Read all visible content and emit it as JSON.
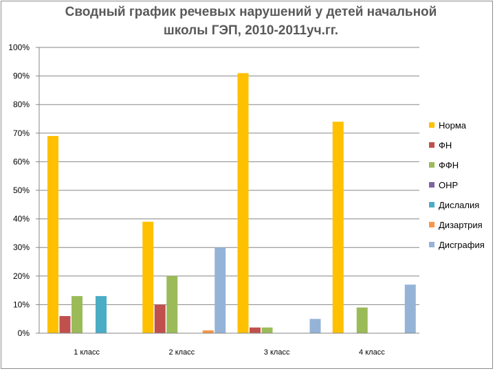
{
  "chart_data": {
    "type": "bar",
    "title_lines": [
      "Сводный график речевых нарушений у детей начальной",
      "школы ГЭП, 2010-2011уч.гг."
    ],
    "categories": [
      "1 класс",
      "2 класс",
      "3 класс",
      "4 класс"
    ],
    "y_ticks": [
      "0%",
      "10%",
      "20%",
      "30%",
      "40%",
      "50%",
      "60%",
      "70%",
      "80%",
      "90%",
      "100%"
    ],
    "ylim": [
      0,
      100
    ],
    "grid": true,
    "legend_position": "right",
    "series": [
      {
        "name": "Норма",
        "color": "#ffc000",
        "values": [
          69,
          39,
          91,
          74
        ]
      },
      {
        "name": "ФН",
        "color": "#c0504d",
        "values": [
          6,
          10,
          2,
          0
        ]
      },
      {
        "name": "ФФН",
        "color": "#9bbb59",
        "values": [
          13,
          20,
          2,
          9
        ]
      },
      {
        "name": "ОНР",
        "color": "#8064a2",
        "values": [
          0,
          0,
          0,
          0
        ]
      },
      {
        "name": "Дислалия",
        "color": "#4bacc6",
        "values": [
          13,
          0,
          0,
          0
        ]
      },
      {
        "name": "Дизартрия",
        "color": "#f79646",
        "values": [
          0,
          1,
          0,
          0
        ]
      },
      {
        "name": "Дисграфия",
        "color": "#95b3d7",
        "values": [
          0,
          30,
          5,
          17
        ]
      }
    ]
  }
}
